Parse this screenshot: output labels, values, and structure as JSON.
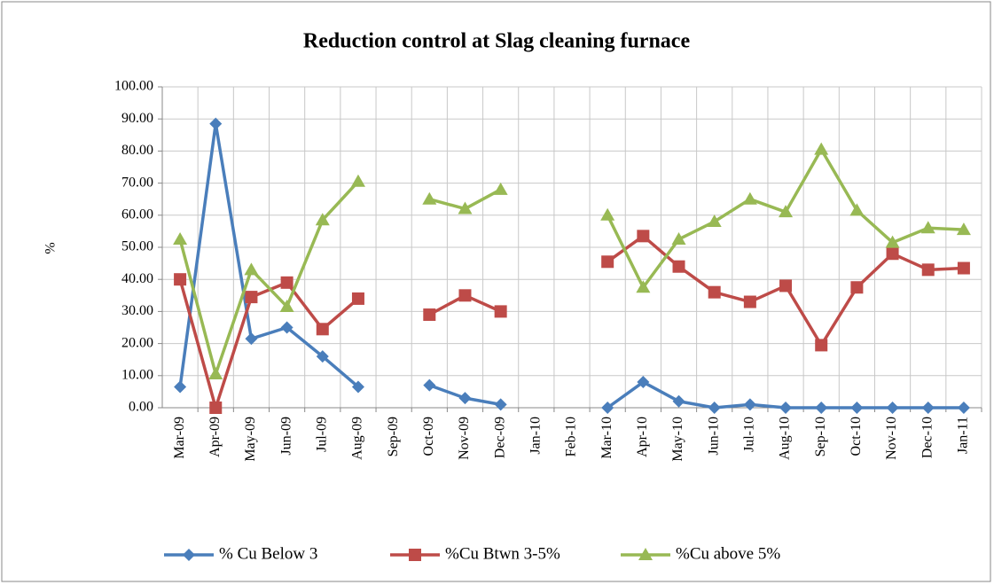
{
  "chart_data": {
    "type": "line",
    "title": "Reduction control at Slag cleaning furnace",
    "y_label": "%",
    "categories": [
      "Mar-09",
      "Apr-09",
      "May-09",
      "Jun-09",
      "Jul-09",
      "Aug-09",
      "Sep-09",
      "Oct-09",
      "Nov-09",
      "Dec-09",
      "Jan-10",
      "Feb-10",
      "Mar-10",
      "Apr-10",
      "May-10",
      "Jun-10",
      "Jul-10",
      "Aug-10",
      "Sep-10",
      "Oct-10",
      "Nov-10",
      "Dec-10",
      "Jan-11"
    ],
    "series": [
      {
        "name": "% Cu Below 3",
        "color": "#4a7ebb",
        "marker": "diamond",
        "values": [
          6.5,
          88.5,
          21.5,
          25,
          16,
          6.5,
          null,
          7,
          3,
          1,
          null,
          null,
          0,
          8,
          2,
          0,
          1,
          0,
          0,
          0,
          0,
          0,
          0
        ]
      },
      {
        "name": "%Cu Btwn 3-5%",
        "color": "#be4b48",
        "marker": "square",
        "values": [
          40,
          0,
          34.5,
          39,
          24.5,
          34,
          null,
          29,
          35,
          30,
          null,
          null,
          45.5,
          53.5,
          44,
          36,
          33,
          38,
          19.5,
          37.5,
          48,
          43,
          43.5
        ]
      },
      {
        "name": "%Cu above 5%",
        "color": "#98b954",
        "marker": "triangle",
        "values": [
          52.5,
          10.5,
          43,
          31.5,
          58.5,
          70.5,
          null,
          65,
          62,
          68,
          null,
          null,
          60,
          37.5,
          52.5,
          58,
          65,
          61,
          80.5,
          61.5,
          51.5,
          56,
          55.5
        ]
      }
    ],
    "ylim": [
      0,
      100
    ],
    "yticks": [
      {
        "value": 0,
        "label": "0.00"
      },
      {
        "value": 10,
        "label": "10.00"
      },
      {
        "value": 20,
        "label": "20.00"
      },
      {
        "value": 30,
        "label": "30.00"
      },
      {
        "value": 40,
        "label": "40.00"
      },
      {
        "value": 50,
        "label": "50.00"
      },
      {
        "value": 60,
        "label": "60.00"
      },
      {
        "value": 70,
        "label": "70.00"
      },
      {
        "value": 80,
        "label": "80.00"
      },
      {
        "value": 90,
        "label": "90.00"
      },
      {
        "value": 100,
        "label": "100.00"
      }
    ],
    "grid": true,
    "legend": "bottom"
  }
}
